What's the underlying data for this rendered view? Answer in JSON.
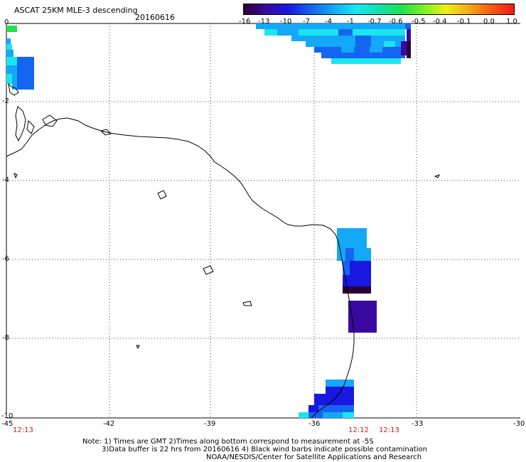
{
  "header": {
    "title": "ASCAT 25KM MLE-3 descending",
    "date": "20160616"
  },
  "colorbar": {
    "labels": [
      "-16",
      "-13",
      "-10",
      "-7",
      "-4",
      "-1",
      "-0.7",
      "-0.6",
      "-0.5",
      "-0.4",
      "-0.1",
      "0.0",
      "1.0"
    ],
    "colors": [
      "#2a0036",
      "#3a0aa0",
      "#1818e0",
      "#1466f0",
      "#14a8f6",
      "#1ae6f0",
      "#12e0b0",
      "#1ee050",
      "#80ee22",
      "#ecf01c",
      "#f4a814",
      "#f45a14",
      "#ee1c1c"
    ]
  },
  "axes": {
    "x_ticks": [
      "-45",
      "-42",
      "-39",
      "-36",
      "-33",
      "-30"
    ],
    "y_ticks": [
      "0",
      "-2",
      "-4",
      "-6",
      "-8",
      "-10"
    ]
  },
  "times": {
    "left": "12:13",
    "mid": "12:12",
    "right": "12:13"
  },
  "notes": {
    "line1": "Note: 1) Times are GMT 2)Times along bottom correspond to measurement at -5S",
    "line2": "3)Data buffer is 22 hrs from 20160616 4) Black wind barbs indicate possible contamination",
    "line3": "NOAA/NESDIS/Center for Satellite Applications and Research"
  }
}
